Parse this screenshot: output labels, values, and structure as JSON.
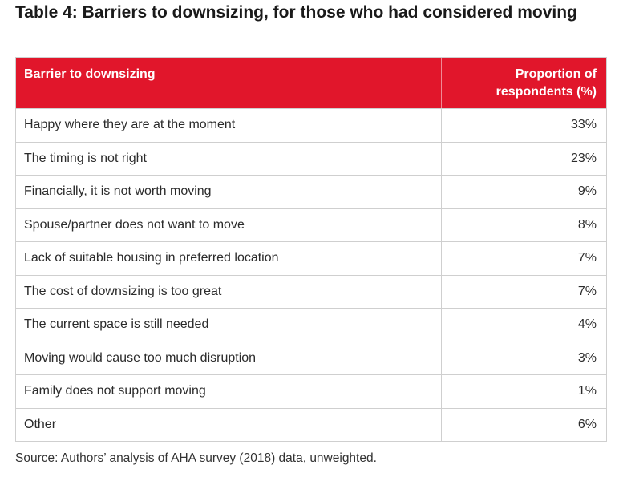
{
  "title": "Table 4: Barriers to downsizing, for those who had considered moving",
  "table": {
    "header": {
      "col1": "Barrier to downsizing",
      "col2_line1": "Proportion of",
      "col2_line2": "respondents (%)"
    },
    "rows": [
      {
        "barrier": "Happy where they are at the moment",
        "proportion": "33%"
      },
      {
        "barrier": "The timing is not right",
        "proportion": "23%"
      },
      {
        "barrier": "Financially, it is not worth moving",
        "proportion": "9%"
      },
      {
        "barrier": "Spouse/partner does not want to move",
        "proportion": "8%"
      },
      {
        "barrier": "Lack of suitable housing in preferred location",
        "proportion": "7%"
      },
      {
        "barrier": "The cost of downsizing is too great",
        "proportion": "7%"
      },
      {
        "barrier": "The current space is still needed",
        "proportion": "4%"
      },
      {
        "barrier": "Moving would cause too much disruption",
        "proportion": "3%"
      },
      {
        "barrier": "Family does not support moving",
        "proportion": "1%"
      },
      {
        "barrier": "Other",
        "proportion": "6%"
      }
    ]
  },
  "source": "Source: Authors’ analysis of AHA survey (2018) data, unweighted.",
  "colors": {
    "header_bg": "#e1162b",
    "header_text": "#ffffff",
    "border": "#cfcfcf"
  }
}
